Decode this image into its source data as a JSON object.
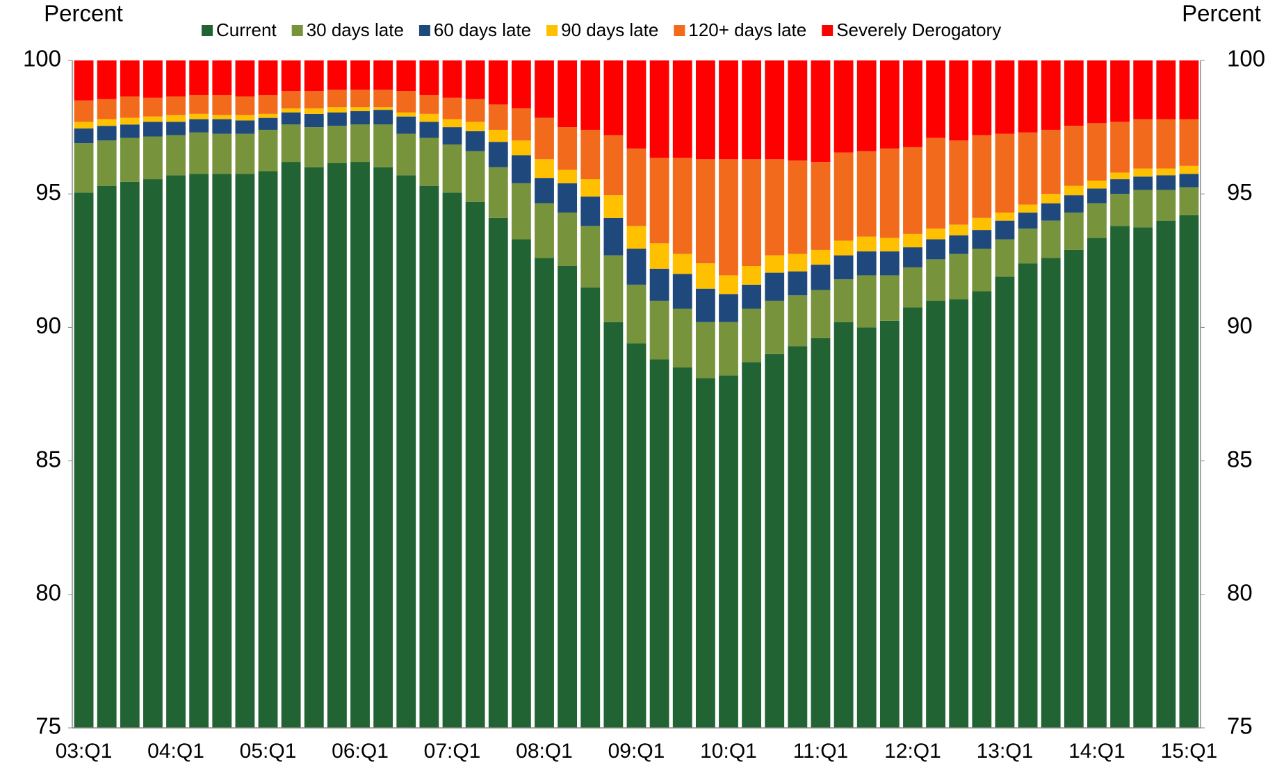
{
  "chart_data": {
    "type": "stacked_bar",
    "y_label": "Percent",
    "y2_label": "Percent",
    "categories": [
      "03:Q1",
      null,
      null,
      null,
      "04:Q1",
      null,
      null,
      null,
      "05:Q1",
      null,
      null,
      null,
      "06:Q1",
      null,
      null,
      null,
      "07:Q1",
      null,
      null,
      null,
      "08:Q1",
      null,
      null,
      null,
      "09:Q1",
      null,
      null,
      null,
      "10:Q1",
      null,
      null,
      null,
      "11:Q1",
      null,
      null,
      null,
      "12:Q1",
      null,
      null,
      null,
      "13:Q1",
      null,
      null,
      null,
      "14:Q1",
      null,
      null,
      null,
      "15:Q1"
    ],
    "series": [
      {
        "name": "Current",
        "color": "#216332",
        "values": [
          95.05,
          95.3,
          95.45,
          95.55,
          95.7,
          95.75,
          95.75,
          95.75,
          95.85,
          96.2,
          96.0,
          96.15,
          96.2,
          96.0,
          95.7,
          95.3,
          95.05,
          94.7,
          94.1,
          93.3,
          92.6,
          92.3,
          91.5,
          90.2,
          89.4,
          88.8,
          88.5,
          88.1,
          88.2,
          88.7,
          89.0,
          89.3,
          89.6,
          90.2,
          90.0,
          90.25,
          90.75,
          91.0,
          91.05,
          91.35,
          91.9,
          92.4,
          92.6,
          92.9,
          93.35,
          93.8,
          93.75,
          94.0,
          94.2
        ]
      },
      {
        "name": "30 days late",
        "color": "#77933c",
        "values": [
          1.85,
          1.7,
          1.65,
          1.6,
          1.5,
          1.55,
          1.5,
          1.5,
          1.55,
          1.4,
          1.5,
          1.4,
          1.4,
          1.6,
          1.55,
          1.8,
          1.8,
          1.9,
          1.9,
          2.1,
          2.05,
          2.0,
          2.3,
          2.5,
          2.2,
          2.2,
          2.2,
          2.1,
          2.0,
          2.0,
          2.0,
          1.9,
          1.8,
          1.6,
          1.95,
          1.7,
          1.5,
          1.55,
          1.7,
          1.6,
          1.4,
          1.3,
          1.4,
          1.4,
          1.3,
          1.2,
          1.4,
          1.15,
          1.05
        ]
      },
      {
        "name": "60 days late",
        "color": "#1f497d",
        "values": [
          0.55,
          0.55,
          0.5,
          0.55,
          0.5,
          0.5,
          0.55,
          0.5,
          0.45,
          0.45,
          0.5,
          0.5,
          0.5,
          0.55,
          0.65,
          0.6,
          0.65,
          0.75,
          0.95,
          1.05,
          0.95,
          1.1,
          1.1,
          1.4,
          1.35,
          1.2,
          1.3,
          1.25,
          1.05,
          0.9,
          1.05,
          0.9,
          0.95,
          0.9,
          0.9,
          0.9,
          0.75,
          0.75,
          0.7,
          0.7,
          0.7,
          0.6,
          0.65,
          0.65,
          0.55,
          0.55,
          0.5,
          0.55,
          0.5
        ]
      },
      {
        "name": "90 days late",
        "color": "#ffc000",
        "values": [
          0.25,
          0.25,
          0.25,
          0.2,
          0.25,
          0.2,
          0.15,
          0.2,
          0.15,
          0.15,
          0.2,
          0.2,
          0.15,
          0.1,
          0.15,
          0.3,
          0.3,
          0.35,
          0.45,
          0.55,
          0.7,
          0.5,
          0.65,
          0.85,
          0.85,
          0.95,
          0.75,
          0.95,
          0.7,
          0.7,
          0.65,
          0.65,
          0.55,
          0.55,
          0.55,
          0.5,
          0.5,
          0.4,
          0.4,
          0.45,
          0.3,
          0.3,
          0.35,
          0.35,
          0.3,
          0.25,
          0.3,
          0.25,
          0.3
        ]
      },
      {
        "name": "120+ days late",
        "color": "#f26b1d",
        "values": [
          0.8,
          0.75,
          0.8,
          0.7,
          0.7,
          0.7,
          0.75,
          0.7,
          0.7,
          0.65,
          0.65,
          0.65,
          0.65,
          0.65,
          0.8,
          0.7,
          0.8,
          0.85,
          0.95,
          1.2,
          1.55,
          1.6,
          1.85,
          2.25,
          2.9,
          3.2,
          3.6,
          3.9,
          4.35,
          4.0,
          3.6,
          3.5,
          3.3,
          3.3,
          3.2,
          3.35,
          3.25,
          3.4,
          3.15,
          3.1,
          2.95,
          2.7,
          2.4,
          2.25,
          2.15,
          1.9,
          1.85,
          1.85,
          1.75
        ]
      },
      {
        "name": "Severely Derogatory",
        "color": "#ff0000",
        "values": [
          1.5,
          1.45,
          1.35,
          1.4,
          1.35,
          1.3,
          1.3,
          1.35,
          1.3,
          1.15,
          1.15,
          1.1,
          1.1,
          1.1,
          1.15,
          1.3,
          1.4,
          1.45,
          1.65,
          1.8,
          2.15,
          2.5,
          2.6,
          2.8,
          3.3,
          3.65,
          3.65,
          3.7,
          3.7,
          3.7,
          3.7,
          3.75,
          3.8,
          3.45,
          3.4,
          3.3,
          3.25,
          2.9,
          3.0,
          2.8,
          2.75,
          2.7,
          2.6,
          2.45,
          2.35,
          2.3,
          2.2,
          2.2,
          2.2
        ]
      }
    ],
    "ylim": [
      75,
      100
    ],
    "yticks": [
      75,
      80,
      85,
      90,
      95,
      100
    ],
    "y2lim": [
      75,
      100
    ],
    "y2ticks": [
      75,
      80,
      85,
      90,
      95,
      100
    ]
  }
}
